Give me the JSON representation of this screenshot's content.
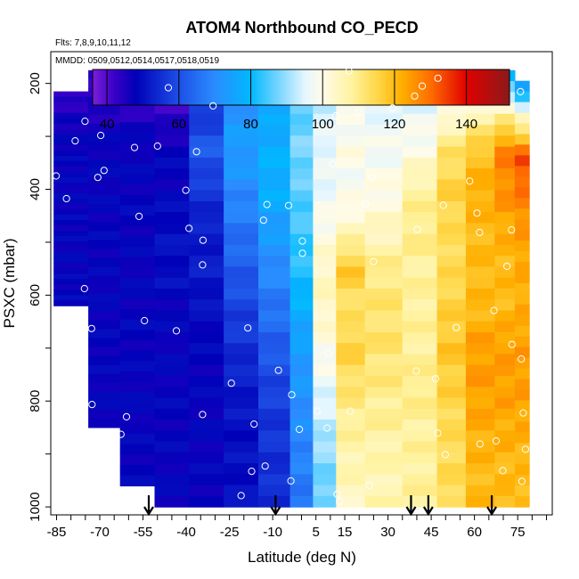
{
  "chart_data": {
    "type": "heatmap",
    "title": "ATOM4 Northbound CO_PECD",
    "flights_text": "Flts: 7,8,9,10,11,12",
    "dates_text": "MMDD: 0509,0512,0514,0517,0518,0519",
    "xlabel": "Latitude (deg N)",
    "ylabel": "PSXC (mbar)",
    "xlim": [
      -87,
      87
    ],
    "ylim": [
      1015,
      140
    ],
    "x_ticks": [
      -85,
      -70,
      -55,
      -40,
      -25,
      -10,
      5,
      15,
      30,
      45,
      60,
      75
    ],
    "y_ticks": [
      200,
      400,
      600,
      800,
      1000
    ],
    "colorbar": {
      "range": [
        36,
        152
      ],
      "ticks": [
        40,
        60,
        80,
        100,
        120,
        140
      ],
      "stops": [
        {
          "v": 36,
          "c": "#7b1fd8"
        },
        {
          "v": 42,
          "c": "#3a00c8"
        },
        {
          "v": 48,
          "c": "#0000b8"
        },
        {
          "v": 60,
          "c": "#1e4fe6"
        },
        {
          "v": 70,
          "c": "#2a8cff"
        },
        {
          "v": 80,
          "c": "#00b8ff"
        },
        {
          "v": 88,
          "c": "#7cd6ff"
        },
        {
          "v": 95,
          "c": "#e4f6ff"
        },
        {
          "v": 100,
          "c": "#fffbe8"
        },
        {
          "v": 108,
          "c": "#fff3a0"
        },
        {
          "v": 115,
          "c": "#ffd84a"
        },
        {
          "v": 122,
          "c": "#ffae00"
        },
        {
          "v": 130,
          "c": "#ff6e00"
        },
        {
          "v": 140,
          "c": "#e10000"
        },
        {
          "v": 152,
          "c": "#8b1a1a"
        }
      ]
    },
    "profiles": [
      {
        "lat_range": [
          -86,
          -74
        ],
        "p_top": 215,
        "p_bottom": 620,
        "values": [
          42,
          46,
          48,
          48,
          48,
          48,
          48,
          48,
          48
        ]
      },
      {
        "lat_range": [
          -74,
          -63
        ],
        "p_top": 175,
        "p_bottom": 850,
        "values": [
          42,
          45,
          48,
          48,
          48,
          48,
          48,
          48,
          48,
          48
        ]
      },
      {
        "lat_range": [
          -63,
          -51
        ],
        "p_top": 175,
        "p_bottom": 960,
        "values": [
          40,
          44,
          48,
          48,
          48,
          48,
          48,
          48,
          48,
          48,
          48,
          48
        ]
      },
      {
        "lat_range": [
          -51,
          -39
        ],
        "p_top": 175,
        "p_bottom": 1000,
        "values": [
          38,
          42,
          48,
          48,
          50,
          50,
          48,
          48,
          48,
          48,
          48,
          48
        ]
      },
      {
        "lat_range": [
          -39,
          -27
        ],
        "p_top": 175,
        "p_bottom": 1000,
        "values": [
          48,
          56,
          62,
          56,
          52,
          52,
          50,
          48,
          48,
          48,
          48,
          48
        ]
      },
      {
        "lat_range": [
          -27,
          -15
        ],
        "p_top": 175,
        "p_bottom": 1000,
        "values": [
          68,
          72,
          74,
          70,
          66,
          62,
          58,
          55,
          52,
          50,
          50,
          50
        ]
      },
      {
        "lat_range": [
          -15,
          -4
        ],
        "p_top": 175,
        "p_bottom": 1000,
        "values": [
          72,
          76,
          78,
          78,
          74,
          70,
          66,
          62,
          58,
          56,
          55,
          55
        ]
      },
      {
        "lat_range": [
          -4,
          4
        ],
        "p_top": 175,
        "p_bottom": 1000,
        "values": [
          80,
          86,
          88,
          86,
          84,
          82,
          78,
          74,
          72,
          70,
          68,
          66
        ]
      },
      {
        "lat_range": [
          4,
          12
        ],
        "p_top": 175,
        "p_bottom": 1000,
        "values": [
          84,
          94,
          96,
          96,
          100,
          104,
          104,
          100,
          96,
          92,
          88,
          86
        ]
      },
      {
        "lat_range": [
          12,
          22
        ],
        "p_top": 175,
        "p_bottom": 1000,
        "values": [
          86,
          98,
          100,
          98,
          104,
          118,
          112,
          116,
          112,
          108,
          106,
          104
        ]
      },
      {
        "lat_range": [
          22,
          35
        ],
        "p_top": 175,
        "p_bottom": 1000,
        "values": [
          88,
          96,
          98,
          100,
          104,
          110,
          112,
          112,
          110,
          108,
          106,
          106
        ]
      },
      {
        "lat_range": [
          35,
          47
        ],
        "p_top": 175,
        "p_bottom": 1000,
        "values": [
          86,
          96,
          100,
          108,
          110,
          108,
          108,
          108,
          110,
          108,
          108,
          108
        ]
      },
      {
        "lat_range": [
          47,
          57
        ],
        "p_top": 175,
        "p_bottom": 1000,
        "values": [
          80,
          100,
          112,
          116,
          114,
          114,
          116,
          118,
          116,
          114,
          114,
          114
        ]
      },
      {
        "lat_range": [
          57,
          67
        ],
        "p_top": 175,
        "p_bottom": 1000,
        "values": [
          76,
          104,
          118,
          122,
          120,
          120,
          120,
          124,
          124,
          122,
          120,
          120
        ]
      },
      {
        "lat_range": [
          67,
          74
        ],
        "p_top": 175,
        "p_bottom": 1000,
        "values": [
          74,
          104,
          128,
          126,
          122,
          120,
          120,
          124,
          124,
          122,
          120,
          120
        ]
      },
      {
        "lat_range": [
          74,
          79
        ],
        "p_top": 195,
        "p_bottom": 1000,
        "values": [
          70,
          104,
          134,
          128,
          124,
          122,
          122,
          124,
          124,
          122,
          120,
          120
        ]
      }
    ],
    "arrows_lat": [
      -53,
      -9,
      38,
      44,
      66
    ]
  }
}
